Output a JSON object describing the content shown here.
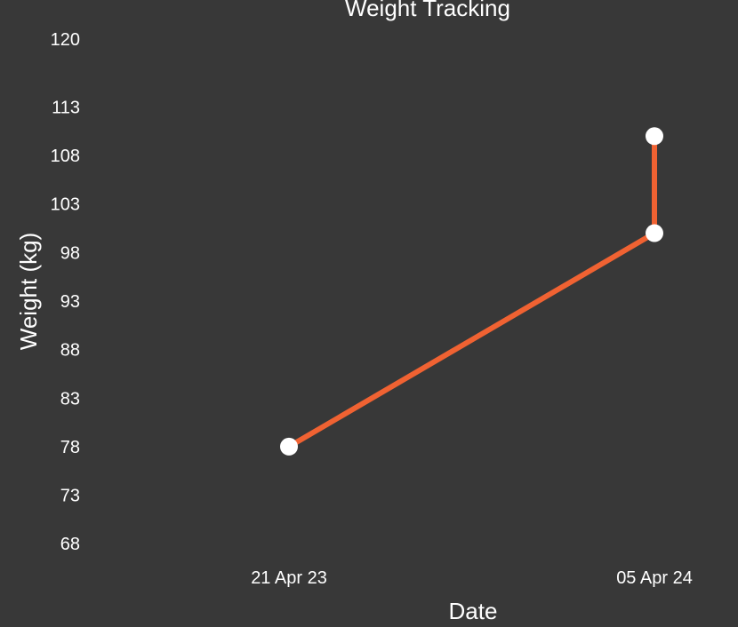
{
  "chart_data": {
    "type": "line",
    "title": "Weight Tracking",
    "xlabel": "Date",
    "ylabel": "Weight (kg)",
    "x_ticks": [
      "21 Apr 23",
      "05 Apr 24"
    ],
    "y_ticks": [
      68,
      73,
      78,
      83,
      88,
      93,
      98,
      103,
      108,
      113,
      120
    ],
    "ylim": [
      66,
      120
    ],
    "grid": false,
    "legend": "none",
    "series": [
      {
        "points": [
          {
            "x": "21 Apr 23",
            "y": 78
          },
          {
            "x": "05 Apr 24",
            "y": 100
          },
          {
            "x": "05 Apr 24",
            "y": 110
          }
        ],
        "color": "#F06232",
        "marker_color": "#FFFFFF"
      }
    ]
  },
  "colors": {
    "background": "#383838",
    "text": "#FFFFFF",
    "line": "#F06232",
    "marker": "#FFFFFF"
  }
}
